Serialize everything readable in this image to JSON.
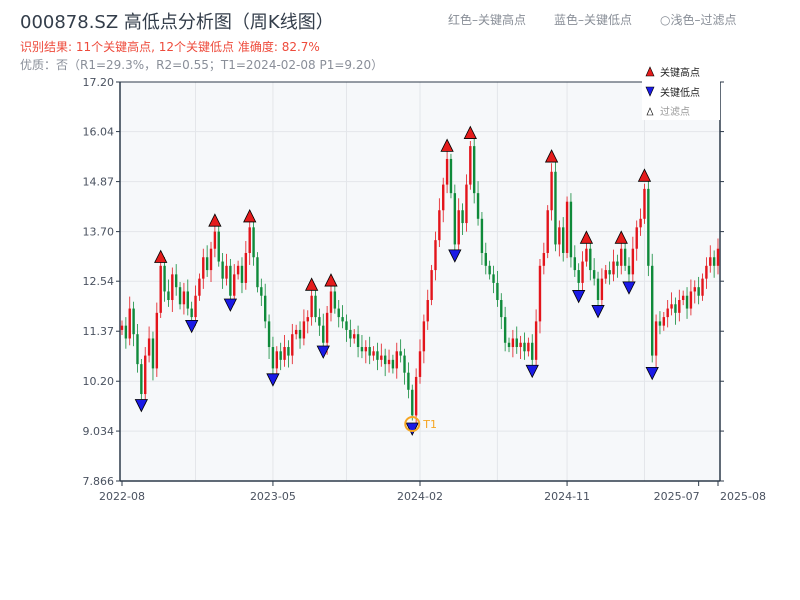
{
  "header": {
    "title": "000878.SZ 高低点分析图（周K线图）",
    "result": "识别结果: 11个关键高点, 12个关键低点   准确度: 82.7%",
    "quality": "优质：否（R1=29.3%，R2=0.55；T1=2024-02-08 P1=9.20）",
    "legend_top": [
      "红色–关键高点",
      "蓝色–关键低点",
      "○浅色–过滤点"
    ]
  },
  "chart_data": {
    "type": "candlestick",
    "ylim": [
      7.866,
      17.2
    ],
    "yticks": [
      "17.20",
      "16.04",
      "14.87",
      "13.70",
      "12.54",
      "11.37",
      "10.20",
      "9.034",
      "7.866"
    ],
    "xticks": [
      {
        "label": "2022-08",
        "index": 0
      },
      {
        "label": "2023-05",
        "index": 39
      },
      {
        "label": "2024-02",
        "index": 77
      },
      {
        "label": "2024-11",
        "index": 115
      },
      {
        "label": "2025-07",
        "index": 149
      },
      {
        "label": "2025-08",
        "index": 154
      }
    ],
    "grid": true,
    "up_color": "#e3141b",
    "down_color": "#0f8a3a",
    "close": [
      11.5,
      11.2,
      11.9,
      11.3,
      10.6,
      9.9,
      10.8,
      11.2,
      10.5,
      11.8,
      12.9,
      12.3,
      12.1,
      12.7,
      12.4,
      12.0,
      12.3,
      11.9,
      11.7,
      12.2,
      12.6,
      13.1,
      12.8,
      13.3,
      13.7,
      13.0,
      12.6,
      12.9,
      12.2,
      12.7,
      12.9,
      12.5,
      13.2,
      13.8,
      13.1,
      12.4,
      12.2,
      11.6,
      11.0,
      10.5,
      10.9,
      10.7,
      11.0,
      10.8,
      11.3,
      11.4,
      11.2,
      11.6,
      11.7,
      12.2,
      11.7,
      11.5,
      11.1,
      11.8,
      12.3,
      11.9,
      11.7,
      11.6,
      11.4,
      11.2,
      11.3,
      11.0,
      10.9,
      11.0,
      10.8,
      10.9,
      10.7,
      10.8,
      10.6,
      10.7,
      10.5,
      10.9,
      10.8,
      10.4,
      10.0,
      9.4,
      10.3,
      10.9,
      11.6,
      12.1,
      12.8,
      13.5,
      14.2,
      14.8,
      15.4,
      14.6,
      13.4,
      14.2,
      13.9,
      14.8,
      15.7,
      14.6,
      14.0,
      13.2,
      12.9,
      12.7,
      12.5,
      12.1,
      11.7,
      11.1,
      11.0,
      11.2,
      11.0,
      11.1,
      10.9,
      11.1,
      10.7,
      11.6,
      12.9,
      13.2,
      14.2,
      15.1,
      13.4,
      13.8,
      13.2,
      14.4,
      13.1,
      12.8,
      12.5,
      13.0,
      13.3,
      12.8,
      12.6,
      12.1,
      12.6,
      12.8,
      12.7,
      13.0,
      12.9,
      13.3,
      12.9,
      12.7,
      13.3,
      13.8,
      14.0,
      14.7,
      12.9,
      10.8,
      11.6,
      11.5,
      11.7,
      11.9,
      12.0,
      11.8,
      12.1,
      12.2,
      11.9,
      12.3,
      12.4,
      12.2,
      12.6,
      12.9,
      13.1,
      12.9,
      13.3
    ],
    "key_highs": [
      {
        "index": 10,
        "price": 13.0
      },
      {
        "index": 24,
        "price": 13.85
      },
      {
        "index": 33,
        "price": 13.95
      },
      {
        "index": 49,
        "price": 12.35
      },
      {
        "index": 54,
        "price": 12.45
      },
      {
        "index": 84,
        "price": 15.6
      },
      {
        "index": 90,
        "price": 15.9
      },
      {
        "index": 111,
        "price": 15.35
      },
      {
        "index": 120,
        "price": 13.45
      },
      {
        "index": 129,
        "price": 13.45
      },
      {
        "index": 135,
        "price": 14.9
      }
    ],
    "key_lows": [
      {
        "index": 5,
        "price": 9.75
      },
      {
        "index": 18,
        "price": 11.6
      },
      {
        "index": 28,
        "price": 12.1
      },
      {
        "index": 39,
        "price": 10.35
      },
      {
        "index": 52,
        "price": 11.0
      },
      {
        "index": 75,
        "price": 9.2
      },
      {
        "index": 86,
        "price": 13.25
      },
      {
        "index": 106,
        "price": 10.55
      },
      {
        "index": 118,
        "price": 12.3
      },
      {
        "index": 123,
        "price": 11.95
      },
      {
        "index": 131,
        "price": 12.5
      },
      {
        "index": 137,
        "price": 10.5
      }
    ],
    "annotation": {
      "label": "T1",
      "index": 75,
      "price": 9.2,
      "color": "#f5a623"
    },
    "legend": {
      "placement": "top-right",
      "entries": [
        "关键高点",
        "关键低点",
        "过滤点"
      ]
    }
  }
}
